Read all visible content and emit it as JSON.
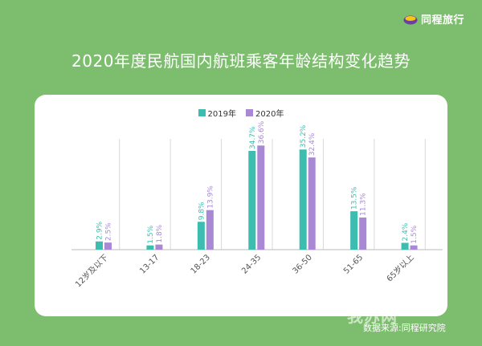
{
  "brand": {
    "logo_text": "同程旅行",
    "logo_icon": "tongcheng-logo-icon",
    "logo_color": "#6b3fa0",
    "logo_accent": "#f5c518"
  },
  "header": {
    "title": "2020年度民航国内航班乘客年龄结构变化趋势"
  },
  "footer": {
    "source": "数据来源:同程研究院",
    "watermark": "我苏网"
  },
  "colors": {
    "background": "#7dbd6e",
    "card": "#ffffff",
    "series_2019": "#3dbdb0",
    "series_2020": "#a988d4",
    "axis": "#999999",
    "label_text": "#555555"
  },
  "chart_data": {
    "type": "bar",
    "title": "2020年度民航国内航班乘客年龄结构变化趋势",
    "xlabel": "",
    "ylabel": "",
    "ylim": [
      0,
      40
    ],
    "grid": false,
    "legend_position": "top-center",
    "categories": [
      "12岁及以下",
      "13-17",
      "18-23",
      "24-35",
      "36-50",
      "51-65",
      "65岁以上"
    ],
    "series": [
      {
        "name": "2019年",
        "color": "#3dbdb0",
        "values": [
          2.9,
          1.5,
          9.8,
          34.7,
          35.2,
          13.5,
          2.4
        ],
        "labels": [
          "2.9%",
          "1.5%",
          "9.8%",
          "34.7%",
          "35.2%",
          "13.5%",
          "2.4%"
        ]
      },
      {
        "name": "2020年",
        "color": "#a988d4",
        "values": [
          2.5,
          1.8,
          13.9,
          36.6,
          32.4,
          11.3,
          1.5
        ],
        "labels": [
          "2.5%",
          "1.8%",
          "13.9%",
          "36.6%",
          "32.4%",
          "11.3%",
          "1.5%"
        ]
      }
    ]
  }
}
